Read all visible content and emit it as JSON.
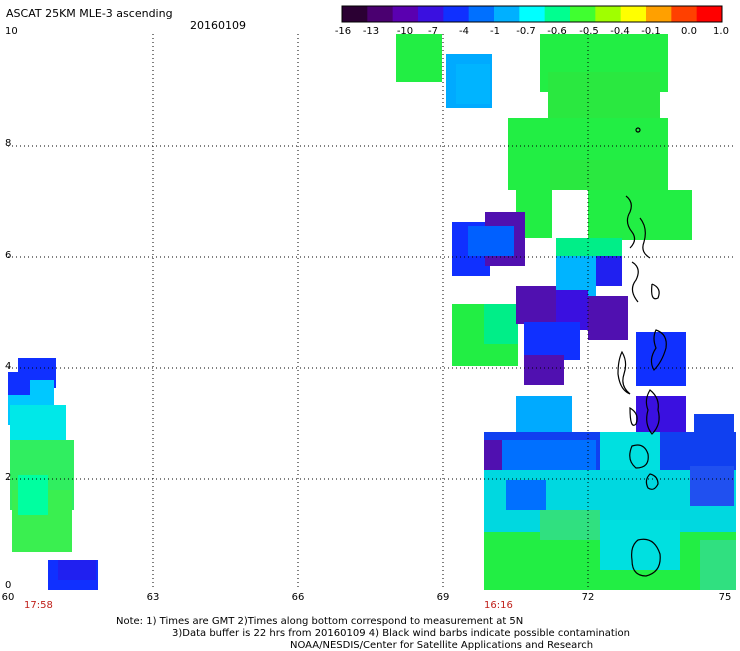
{
  "header": {
    "title": "ASCAT 25KM MLE-3 ascending",
    "date": "20160109"
  },
  "colorbar": {
    "labels": [
      "-16",
      "-13",
      "-10",
      "-7",
      "-4",
      "-1",
      "-0.7",
      "-0.6",
      "-0.5",
      "-0.4",
      "-0.1",
      "0.0",
      "1.0"
    ],
    "colors": [
      "#2b0033",
      "#4a0070",
      "#5a00b0",
      "#3a10e0",
      "#1030ff",
      "#0070ff",
      "#00b0ff",
      "#00ffff",
      "#00ff90",
      "#40ff30",
      "#a0ff00",
      "#ffff00",
      "#ffa000",
      "#ff4000",
      "#ff0000"
    ]
  },
  "map": {
    "lat_labels": [
      "10",
      "8",
      "6",
      "4",
      "2",
      "0"
    ],
    "lon_labels": [
      "60",
      "63",
      "66",
      "69",
      "72",
      "75"
    ],
    "pass_times": [
      "17:58",
      "16:16"
    ]
  },
  "notes": {
    "line1": "Note: 1) Times are GMT 2)Times along bottom correspond to measurement at 5N",
    "line2": "3)Data buffer is 22 hrs from 20160109 4) Black wind barbs indicate possible contamination",
    "line3": "NOAA/NESDIS/Center for Satellite Applications and Research"
  }
}
